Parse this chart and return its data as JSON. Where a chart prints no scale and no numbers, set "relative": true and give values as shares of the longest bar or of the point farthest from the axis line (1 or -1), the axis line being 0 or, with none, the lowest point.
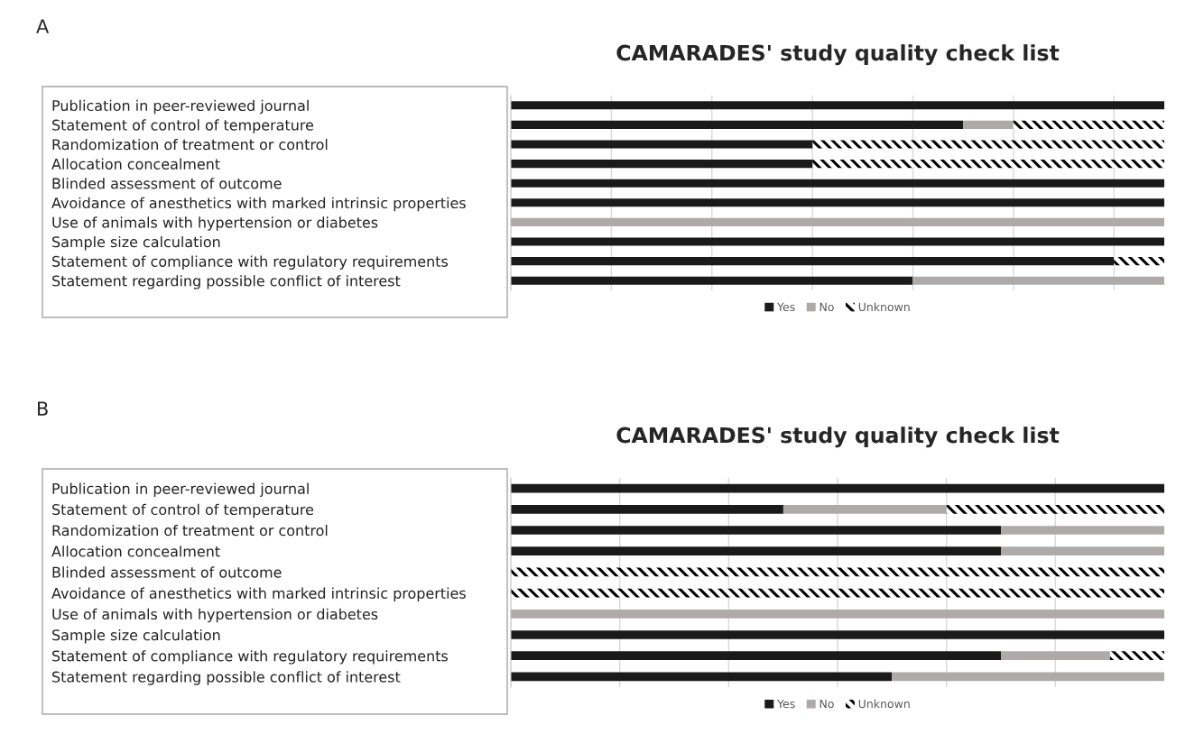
{
  "chart_data": [
    {
      "type": "bar",
      "orientation": "horizontal",
      "stacked": true,
      "relative": true,
      "title": "CAMARADES' study quality check list",
      "annotations": [
        "A"
      ],
      "categories": [
        "Publication in peer-reviewed journal",
        "Statement of control of temperature",
        "Randomization of treatment or control",
        "Allocation concealment",
        "Blinded assessment of outcome",
        "Avoidance of anesthetics with marked intrinsic properties",
        "Use of animals with hypertension or diabetes",
        "Sample size calculation",
        "Statement of compliance with regulatory requirements",
        "Statement regarding possible conflict of interest"
      ],
      "series": [
        {
          "name": "Yes",
          "color": "#1a1a1a",
          "values": [
            1,
            0.692,
            0.462,
            0.462,
            1,
            1,
            0,
            1,
            0.923,
            0.615
          ]
        },
        {
          "name": "No",
          "color": "#aeaaaa",
          "values": [
            0,
            0.077,
            0,
            0,
            0,
            0,
            1,
            0,
            0,
            0.385
          ]
        },
        {
          "name": "Unknown",
          "color": "#000000",
          "values": [
            0,
            0.231,
            0.538,
            0.538,
            0,
            0,
            0,
            0,
            0.077,
            0
          ]
        }
      ],
      "grid": "x",
      "legend": "bottom"
    },
    {
      "type": "bar",
      "orientation": "horizontal",
      "stacked": true,
      "relative": true,
      "title": "CAMARADES' study quality check list",
      "annotations": [
        "B"
      ],
      "categories": [
        "Publication in peer-reviewed journal",
        "Statement of control of temperature",
        "Randomization of treatment or control",
        "Allocation concealment",
        "Blinded assessment of outcome",
        "Avoidance of anesthetics with marked intrinsic properties",
        "Use of animals with hypertension or diabetes",
        "Sample size calculation",
        "Statement of compliance with regulatory requirements",
        "Statement regarding possible conflict of interest"
      ],
      "series": [
        {
          "name": "Yes",
          "color": "#1a1a1a",
          "values": [
            1,
            0.417,
            0.75,
            0.75,
            0,
            0,
            0,
            1,
            0.75,
            0.583
          ]
        },
        {
          "name": "No",
          "color": "#aeaaaa",
          "values": [
            0,
            0.25,
            0.25,
            0.25,
            0,
            0,
            1,
            0,
            0.167,
            0.417
          ]
        },
        {
          "name": "Unknown",
          "color": "#000000",
          "values": [
            0,
            0.333,
            0,
            0,
            1,
            1,
            0,
            0,
            0.083,
            0
          ]
        }
      ],
      "grid": "x",
      "legend": "bottom"
    }
  ]
}
